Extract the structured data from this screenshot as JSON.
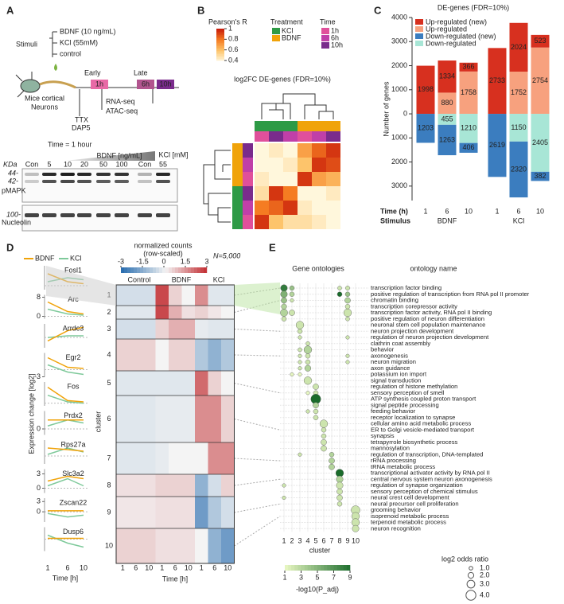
{
  "panel_a": {
    "label": "A",
    "stimuli": "Stimuli",
    "treatments": [
      "BDNF (10 ng/mL)",
      "KCl (55mM)",
      "control"
    ],
    "early": "Early",
    "late": "Late",
    "times": [
      "1h",
      "6h",
      "10h"
    ],
    "cells": [
      "Mice cortical",
      "Neurons"
    ],
    "assays": [
      "RNA-seq",
      "ATAC-seq"
    ],
    "inhibitors": [
      "TTX",
      "DAP5"
    ],
    "blot_title": "Time = 1 hour",
    "bdnf_gradient": "BDNF [ng/mL]",
    "kcl_header": "KCl [mM]",
    "kda": "KDa",
    "lanes": [
      "Con",
      "5",
      "10",
      "20",
      "50",
      "100",
      "Con",
      "55"
    ],
    "markers": [
      "44-",
      "42-",
      "100-"
    ],
    "rows": [
      "pMAPK",
      "Nucleolin"
    ]
  },
  "panel_b": {
    "label": "B",
    "legend_title": "Pearson's R",
    "scale_ticks": [
      1,
      0.8,
      0.6,
      0.4
    ],
    "treatment_title": "Treatment",
    "treatments": [
      "KCl",
      "BDNF"
    ],
    "time_title": "Time",
    "times": [
      "1h",
      "6h",
      "10h"
    ],
    "title": "log2FC DE-genes (FDR=10%)",
    "matrix": [
      [
        0.4,
        0.45,
        0.4,
        0.7,
        0.85,
        0.95
      ],
      [
        0.4,
        0.4,
        0.45,
        0.6,
        0.95,
        0.9
      ],
      [
        0.45,
        0.4,
        0.4,
        0.95,
        0.7,
        0.65
      ],
      [
        0.5,
        0.95,
        0.8,
        0.4,
        0.4,
        0.45
      ],
      [
        0.8,
        0.85,
        0.95,
        0.45,
        0.4,
        0.4
      ],
      [
        0.95,
        0.6,
        0.5,
        0.5,
        0.45,
        0.4
      ]
    ]
  },
  "panel_c": {
    "label": "C",
    "type": "bar",
    "title": "DE-genes (FDR=10%)",
    "y_label": "Number of genes",
    "ylim": [
      -3600,
      4000
    ],
    "yticks": [
      4000,
      3000,
      2000,
      1000,
      0,
      {
        "value": -1000,
        "label": "1000"
      },
      {
        "value": -2000,
        "label": "2000"
      },
      {
        "value": -3000,
        "label": "3000"
      }
    ],
    "time_label": "Time (h)",
    "stimulus_label": "Stimulus",
    "times": [
      "1",
      "6",
      "10"
    ],
    "stimuli": [
      "BDNF",
      "KCl"
    ],
    "series": [
      {
        "name": "Up-regulated (new)",
        "color": "#d7301f",
        "values": [
          1998,
          1334,
          366,
          2733,
          2024,
          523
        ]
      },
      {
        "name": "Up-regulated",
        "color": "#f7a17e",
        "values": [
          null,
          880,
          1758,
          null,
          1752,
          2754
        ]
      },
      {
        "name": "Down-regulated (new)",
        "color": "#3b7dbf",
        "values": [
          -1203,
          -1263,
          -406,
          -2619,
          -2320,
          -382
        ],
        "value_labels": [
          "1203",
          "1263",
          "406",
          "2619",
          "2320",
          "382"
        ]
      },
      {
        "name": "Down-regulated",
        "color": "#a8e6d6",
        "values": [
          null,
          -455,
          -1210,
          null,
          -1150,
          -2405
        ],
        "value_labels": [
          null,
          "455",
          "1210",
          null,
          "1150",
          "2405"
        ]
      }
    ]
  },
  "panel_d": {
    "label": "D",
    "legend": [
      "BDNF",
      "KCl"
    ],
    "y_label": "Expression change [log2]",
    "time_label": "Time [h]",
    "times": [
      1,
      6,
      10
    ],
    "genes": [
      {
        "name": "Fosl1",
        "ylim": [
          -1,
          5
        ],
        "yticks": [],
        "bdnf": [
          3,
          1,
          0.5
        ],
        "kcl": [
          1,
          2,
          1.5
        ]
      },
      {
        "name": "Arc",
        "ylim": [
          -1,
          9
        ],
        "yticks": [
          8,
          0
        ],
        "bdnf": [
          6,
          2,
          1
        ],
        "kcl": [
          3,
          1,
          0.5
        ]
      },
      {
        "name": "Arrdc3",
        "ylim": [
          -3,
          4
        ],
        "yticks": [],
        "bdnf": [
          -1,
          2,
          3
        ],
        "kcl": [
          0,
          0.5,
          0.5
        ]
      },
      {
        "name": "Egr2",
        "ylim": [
          -3,
          7
        ],
        "yticks": [
          -3
        ],
        "bdnf": [
          5,
          1,
          0.5
        ],
        "kcl": [
          2,
          -1,
          -2
        ]
      },
      {
        "name": "Fos",
        "ylim": [
          -1,
          8
        ],
        "yticks": [],
        "bdnf": [
          6,
          1,
          0.5
        ],
        "kcl": [
          3,
          0.5,
          0
        ]
      },
      {
        "name": "Prdx2",
        "ylim": [
          -1,
          3
        ],
        "yticks": [
          0
        ],
        "bdnf": [
          1.5,
          1.5,
          1.5
        ],
        "kcl": [
          0.5,
          1.5,
          1
        ]
      },
      {
        "name": "Rps27a",
        "ylim": [
          -1,
          2
        ],
        "yticks": [],
        "bdnf": [
          1,
          0.8,
          0.6
        ],
        "kcl": [
          0.2,
          1,
          0.5
        ]
      },
      {
        "name": "Slc3a2",
        "ylim": [
          -1,
          4
        ],
        "yticks": [
          3,
          0
        ],
        "bdnf": [
          1.5,
          2.5,
          2
        ],
        "kcl": [
          0.5,
          2,
          0.5
        ]
      },
      {
        "name": "Zscan22",
        "ylim": [
          -3,
          4
        ],
        "yticks": [
          3,
          0
        ],
        "bdnf": [
          0.3,
          0.3,
          0.3
        ],
        "kcl": [
          -0.5,
          -1.5,
          -1
        ]
      },
      {
        "name": "Dusp6",
        "ylim": [
          -3,
          3
        ],
        "yticks": [],
        "bdnf": [
          0.2,
          0.2,
          0.2
        ],
        "kcl": [
          1,
          -1,
          -2
        ]
      }
    ],
    "scale_title": [
      "normalized counts",
      "(row-scaled)"
    ],
    "scale_ticks": [
      -3,
      -1.5,
      0,
      1.5,
      3
    ],
    "n_label": "N=5,000",
    "groups": [
      "Control",
      "BDNF",
      "KCl"
    ],
    "cluster_label": "cluster",
    "clusters": [
      1,
      2,
      3,
      4,
      5,
      6,
      7,
      8,
      9,
      10
    ],
    "cluster_means": [
      [
        -0.5,
        -0.5,
        -0.5,
        2.5,
        0.5,
        0,
        1.5,
        -0.3,
        -0.3
      ],
      [
        -0.3,
        -0.3,
        -0.3,
        2.5,
        1,
        0.3,
        0.5,
        0.2,
        0
      ],
      [
        -0.5,
        -0.5,
        -0.5,
        0.5,
        1,
        1,
        -0.2,
        -0.3,
        -0.3
      ],
      [
        0.5,
        0.5,
        0.5,
        0,
        0.5,
        0.5,
        -1,
        -1.5,
        -1
      ],
      [
        -0.3,
        -0.3,
        -0.3,
        -0.3,
        -0.3,
        -0.3,
        2,
        0.5,
        0
      ],
      [
        -0.3,
        -0.3,
        -0.3,
        -0.2,
        -0.2,
        -0.2,
        1.5,
        1.5,
        0.5
      ],
      [
        -0.3,
        -0.3,
        -0.3,
        -0.2,
        0,
        0,
        0,
        1.5,
        1.5
      ],
      [
        0.3,
        0.3,
        0.3,
        0.5,
        0.5,
        0.5,
        -1.5,
        -0.5,
        0.5
      ],
      [
        0.2,
        0.2,
        0.2,
        0.3,
        0.3,
        0.3,
        -2,
        -1,
        -0.5
      ],
      [
        0.5,
        0.5,
        0.5,
        0.3,
        0.3,
        0.3,
        0,
        -1.5,
        -2
      ]
    ]
  },
  "panel_e": {
    "label": "E",
    "title": "Gene ontologies",
    "names_title": "ontology name",
    "cluster_label": "cluster",
    "clusters": [
      1,
      2,
      3,
      4,
      5,
      6,
      7,
      8,
      9,
      10
    ],
    "p_label": "-log10(P_adj)",
    "p_ticks": [
      1,
      3,
      5,
      7,
      9
    ],
    "odds_label": "log2 odds ratio",
    "odds_ticks": [
      {
        "value": 1,
        "label": "1.0"
      },
      {
        "value": 2,
        "label": "2.0"
      },
      {
        "value": 3,
        "label": "3.0"
      },
      {
        "value": 4,
        "label": "4.0"
      }
    ],
    "terms": [
      {
        "name": "transcription factor binding",
        "color": "#e8601c",
        "clusters": [
          1,
          2,
          8,
          9
        ],
        "neg_log_p": [
          8,
          4,
          2,
          2
        ],
        "log2_odds": [
          2.5,
          1.5,
          1.2,
          1.3
        ]
      },
      {
        "name": "positive regulation of transcription from RNA pol II promoter",
        "color": "#e8601c",
        "clusters": [
          1,
          2,
          8,
          9
        ],
        "neg_log_p": [
          5,
          3,
          9,
          4
        ],
        "log2_odds": [
          2.5,
          1.5,
          1.5,
          1.5
        ]
      },
      {
        "name": "chromatin binding",
        "color": "#e8601c",
        "clusters": [
          1,
          2,
          9
        ],
        "neg_log_p": [
          4,
          2,
          3
        ],
        "log2_odds": [
          2,
          1,
          2
        ]
      },
      {
        "name": "transcription corepressor activity",
        "color": "#e8601c",
        "clusters": [
          1,
          9
        ],
        "neg_log_p": [
          3,
          2
        ],
        "log2_odds": [
          1.8,
          1.5
        ]
      },
      {
        "name": "transcription factor activity, RNA pol II binding",
        "color": "#e8601c",
        "clusters": [
          1,
          2,
          9
        ],
        "neg_log_p": [
          3,
          2,
          2
        ],
        "log2_odds": [
          2.8,
          2,
          3
        ]
      },
      {
        "name": "positive regulation of neuron differentiation",
        "color": "#555555",
        "clusters": [
          1,
          9
        ],
        "neg_log_p": [
          2,
          2
        ],
        "log2_odds": [
          1.5,
          1.2
        ]
      },
      {
        "name": "neuronal stem cell population maintenance",
        "color": "#555555",
        "clusters": [
          3
        ],
        "neg_log_p": [
          2
        ],
        "log2_odds": [
          3
        ]
      },
      {
        "name": "neuron projection development",
        "color": "#555555",
        "clusters": [
          3
        ],
        "neg_log_p": [
          2
        ],
        "log2_odds": [
          1.5
        ]
      },
      {
        "name": "regulation of neuron projection development",
        "color": "#555555",
        "clusters": [
          3,
          9
        ],
        "neg_log_p": [
          2,
          2
        ],
        "log2_odds": [
          1,
          1
        ]
      },
      {
        "name": "clathrin coat assembly",
        "color": "#e8601c",
        "clusters": [
          4
        ],
        "neg_log_p": [
          2
        ],
        "log2_odds": [
          1.2
        ]
      },
      {
        "name": "behavior",
        "color": "#e8601c",
        "clusters": [
          3,
          4
        ],
        "neg_log_p": [
          2,
          3
        ],
        "log2_odds": [
          1.2,
          3
        ]
      },
      {
        "name": "axonogenesis",
        "color": "#e8601c",
        "clusters": [
          3,
          4,
          9
        ],
        "neg_log_p": [
          2,
          2,
          2
        ],
        "log2_odds": [
          1,
          1.5,
          1
        ]
      },
      {
        "name": "neuron migration",
        "color": "#e8601c",
        "clusters": [
          3,
          4,
          9
        ],
        "neg_log_p": [
          2,
          2,
          2
        ],
        "log2_odds": [
          1,
          1.5,
          1
        ]
      },
      {
        "name": "axon guidance",
        "color": "#e8601c",
        "clusters": [
          3,
          4
        ],
        "neg_log_p": [
          2,
          3
        ],
        "log2_odds": [
          1,
          2.2
        ]
      },
      {
        "name": "potassium ion import",
        "color": "#555555",
        "clusters": [
          2,
          3
        ],
        "neg_log_p": [
          1,
          1
        ],
        "log2_odds": [
          1,
          1
        ]
      },
      {
        "name": "signal transduction",
        "color": "#555555",
        "clusters": [
          4
        ],
        "neg_log_p": [
          2
        ],
        "log2_odds": [
          3
        ]
      },
      {
        "name": "regulation of histone methylation",
        "color": "#555555",
        "clusters": [
          5
        ],
        "neg_log_p": [
          2
        ],
        "log2_odds": [
          2
        ]
      },
      {
        "name": "sensory perception of smell",
        "color": "#555555",
        "clusters": [
          4,
          5
        ],
        "neg_log_p": [
          1,
          2
        ],
        "log2_odds": [
          1,
          1.5
        ]
      },
      {
        "name": "ATP synthesis coupled proton transport",
        "color": "#e8601c",
        "clusters": [
          5
        ],
        "neg_log_p": [
          9
        ],
        "log2_odds": [
          4
        ]
      },
      {
        "name": "signal peptide processing",
        "color": "#e8601c",
        "clusters": [
          5
        ],
        "neg_log_p": [
          3
        ],
        "log2_odds": [
          2
        ]
      },
      {
        "name": "feeding behavior",
        "color": "#e8601c",
        "clusters": [
          4,
          5
        ],
        "neg_log_p": [
          2,
          2
        ],
        "log2_odds": [
          1,
          1.5
        ]
      },
      {
        "name": "receptor localization to synapse",
        "color": "#e8601c",
        "clusters": [
          5
        ],
        "neg_log_p": [
          2
        ],
        "log2_odds": [
          1.5
        ]
      },
      {
        "name": "cellular amino acid metabolic process",
        "color": "#555555",
        "clusters": [
          6
        ],
        "neg_log_p": [
          2
        ],
        "log2_odds": [
          3
        ]
      },
      {
        "name": "ER to Golgi vesicle-mediated transport",
        "color": "#555555",
        "clusters": [
          6
        ],
        "neg_log_p": [
          2
        ],
        "log2_odds": [
          1.5
        ]
      },
      {
        "name": "synapsis",
        "color": "#555555",
        "clusters": [
          6
        ],
        "neg_log_p": [
          2
        ],
        "log2_odds": [
          1.5
        ]
      },
      {
        "name": "tetrapyrrole biosynthetic process",
        "color": "#555555",
        "clusters": [
          6
        ],
        "neg_log_p": [
          2
        ],
        "log2_odds": [
          2
        ]
      },
      {
        "name": "mannosylation",
        "color": "#555555",
        "clusters": [
          6
        ],
        "neg_log_p": [
          2
        ],
        "log2_odds": [
          2
        ]
      },
      {
        "name": "regulation of transcription, DNA-templated",
        "color": "#e8601c",
        "clusters": [
          3,
          7
        ],
        "neg_log_p": [
          2,
          3
        ],
        "log2_odds": [
          1,
          1.5
        ]
      },
      {
        "name": "rRNA processing",
        "color": "#e8601c",
        "clusters": [
          7
        ],
        "neg_log_p": [
          3
        ],
        "log2_odds": [
          2
        ]
      },
      {
        "name": "tRNA metabolic process",
        "color": "#e8601c",
        "clusters": [
          7
        ],
        "neg_log_p": [
          3
        ],
        "log2_odds": [
          2
        ]
      },
      {
        "name": "transcriptional activator activity by RNA pol II",
        "color": "#555555",
        "clusters": [
          8
        ],
        "neg_log_p": [
          9
        ],
        "log2_odds": [
          3
        ]
      },
      {
        "name": "central nervous system neuron axonogenesis",
        "color": "#555555",
        "clusters": [
          8
        ],
        "neg_log_p": [
          3
        ],
        "log2_odds": [
          2.5
        ]
      },
      {
        "name": "regulation of synapse organization",
        "color": "#555555",
        "clusters": [
          1,
          8
        ],
        "neg_log_p": [
          2,
          2
        ],
        "log2_odds": [
          1,
          2.5
        ]
      },
      {
        "name": "sensory perception of chemical stimulus",
        "color": "#555555",
        "clusters": [
          8
        ],
        "neg_log_p": [
          2
        ],
        "log2_odds": [
          2
        ]
      },
      {
        "name": "neural crest cell development",
        "color": "#e8601c",
        "clusters": [
          1,
          8
        ],
        "neg_log_p": [
          2,
          2
        ],
        "log2_odds": [
          1,
          2
        ]
      },
      {
        "name": "neural precursor cell proliferation",
        "color": "#e8601c",
        "clusters": [
          8
        ],
        "neg_log_p": [
          2
        ],
        "log2_odds": [
          1.5
        ]
      },
      {
        "name": "grooming behavior",
        "color": "#555555",
        "clusters": [
          10
        ],
        "neg_log_p": [
          2
        ],
        "log2_odds": [
          3.5
        ]
      },
      {
        "name": "isoprenoid metabolic process",
        "color": "#555555",
        "clusters": [
          10
        ],
        "neg_log_p": [
          2
        ],
        "log2_odds": [
          3
        ]
      },
      {
        "name": "terpenoid metabolic process",
        "color": "#555555",
        "clusters": [
          10
        ],
        "neg_log_p": [
          2
        ],
        "log2_odds": [
          3
        ]
      },
      {
        "name": "neuron recognition",
        "color": "#555555",
        "clusters": [
          10
        ],
        "neg_log_p": [
          2
        ],
        "log2_odds": [
          2.5
        ]
      }
    ]
  }
}
